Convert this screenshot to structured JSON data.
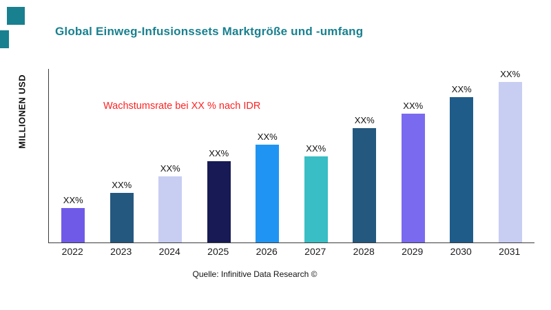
{
  "title": "Global Einweg-Infusionssets Marktgröße und -umfang",
  "ylabel": "MILLIONEN USD",
  "annotation": "Wachstumsrate bei XX % nach IDR",
  "source": "Quelle: Infinitive Data Research ©",
  "accent_colors": {
    "title": "#19808f",
    "annotation": "#ff2222",
    "decor": "#19808f",
    "axis": "#3a3a3a"
  },
  "chart_data": {
    "type": "bar",
    "title": "Global Einweg-Infusionssets Marktgröße und -umfang",
    "categories": [
      "2022",
      "2023",
      "2024",
      "2025",
      "2026",
      "2027",
      "2028",
      "2029",
      "2030",
      "2031"
    ],
    "values": [
      21,
      30,
      40,
      49,
      59,
      52,
      69,
      78,
      88,
      98
    ],
    "bar_labels": [
      "XX%",
      "XX%",
      "XX%",
      "XX%",
      "XX%",
      "XX%",
      "XX%",
      "XX%",
      "XX%",
      "XX%"
    ],
    "bar_colors": [
      "#6f5ae8",
      "#24587f",
      "#c8cdf2",
      "#171a54",
      "#2094f3",
      "#38bec4",
      "#24587f",
      "#7a6af0",
      "#1f5c8a",
      "#c8cdf2"
    ],
    "xlabel": "",
    "ylabel": "MILLIONEN USD",
    "ylim": [
      0,
      105
    ],
    "grid": false,
    "legend": null,
    "annotations": [
      "Wachstumsrate bei XX % nach IDR"
    ]
  }
}
